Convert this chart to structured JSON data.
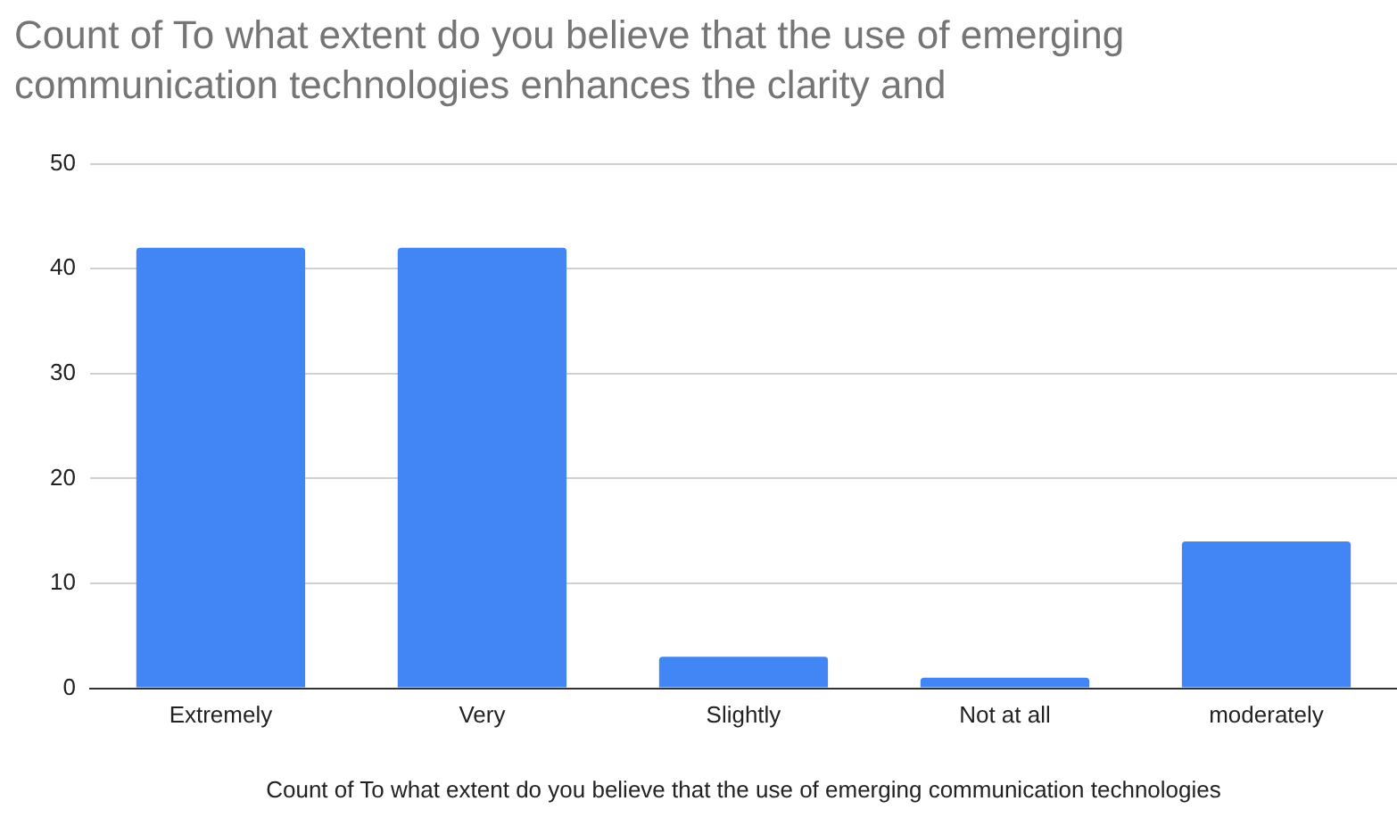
{
  "chart_data": {
    "type": "bar",
    "title": "Count of To what extent do you believe that the use of emerging communication technologies enhances the clarity and",
    "xlabel": "Count of To what extent do you believe that the use of emerging communication technologies",
    "categories": [
      "Extremely",
      "Very",
      "Slightly",
      "Not at all",
      "moderately"
    ],
    "values": [
      42,
      42,
      3,
      1,
      14
    ],
    "color": "#4285f4",
    "ylim": [
      0,
      50
    ],
    "yticks": [
      0,
      10,
      20,
      30,
      40,
      50
    ],
    "grid": "y",
    "legend": false
  }
}
